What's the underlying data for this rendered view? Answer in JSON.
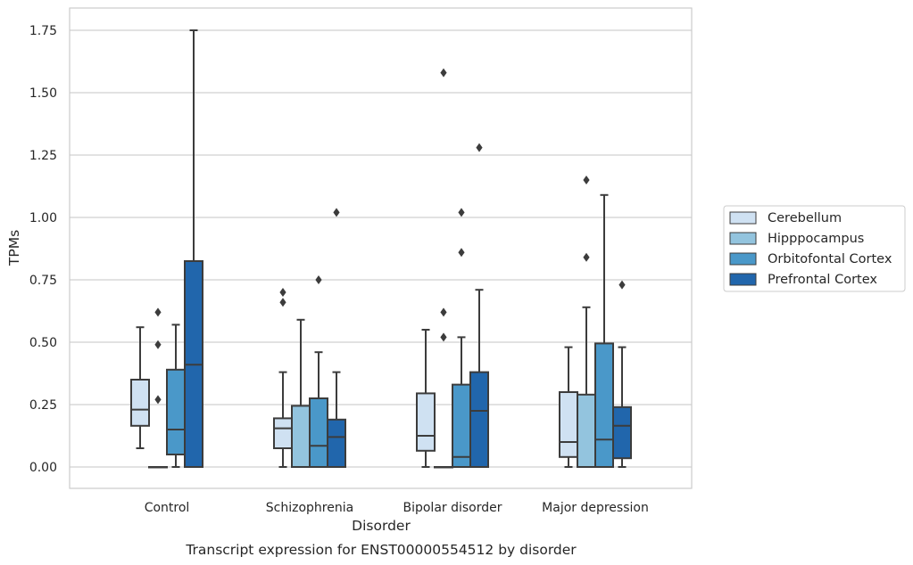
{
  "chart_data": {
    "type": "box",
    "title": "",
    "caption": "Transcript expression for ENST00000554512 by disorder",
    "xlabel": "Disorder",
    "ylabel": "TPMs",
    "ylim": [
      -0.08,
      1.84
    ],
    "yticks": [
      0.0,
      0.25,
      0.5,
      0.75,
      1.0,
      1.25,
      1.5,
      1.75
    ],
    "ytick_labels": [
      "0.00",
      "0.25",
      "0.50",
      "0.75",
      "1.00",
      "1.25",
      "1.50",
      "1.75"
    ],
    "grid": "horizontal",
    "legend_position": "right",
    "categories": [
      "Control",
      "Schizophrenia",
      "Bipolar disorder",
      "Major depression"
    ],
    "series": [
      {
        "name": "Cerebellum",
        "color": "#cfe1f2",
        "boxes": [
          {
            "whislo": 0.075,
            "q1": 0.165,
            "med": 0.23,
            "q3": 0.35,
            "whishi": 0.56,
            "fliers": []
          },
          {
            "whislo": 0.0,
            "q1": 0.075,
            "med": 0.155,
            "q3": 0.195,
            "whishi": 0.38,
            "fliers": [
              0.66,
              0.7
            ]
          },
          {
            "whislo": 0.0,
            "q1": 0.065,
            "med": 0.125,
            "q3": 0.295,
            "whishi": 0.55,
            "fliers": []
          },
          {
            "whislo": 0.0,
            "q1": 0.04,
            "med": 0.1,
            "q3": 0.3,
            "whishi": 0.48,
            "fliers": []
          }
        ]
      },
      {
        "name": "Hipppocampus",
        "color": "#93c4de",
        "boxes": [
          {
            "whislo": 0.0,
            "q1": 0.0,
            "med": 0.0,
            "q3": 0.0,
            "whishi": 0.0,
            "fliers": [
              0.27,
              0.49,
              0.62
            ]
          },
          {
            "whislo": 0.0,
            "q1": 0.0,
            "med": 0.0,
            "q3": 0.245,
            "whishi": 0.59,
            "fliers": []
          },
          {
            "whislo": 0.0,
            "q1": 0.0,
            "med": 0.0,
            "q3": 0.0,
            "whishi": 0.0,
            "fliers": [
              0.52,
              0.62,
              1.58
            ]
          },
          {
            "whislo": 0.0,
            "q1": 0.0,
            "med": 0.0,
            "q3": 0.29,
            "whishi": 0.64,
            "fliers": [
              0.84,
              1.15
            ]
          }
        ]
      },
      {
        "name": "Orbitofontal Cortex",
        "color": "#4a98c9",
        "boxes": [
          {
            "whislo": 0.0,
            "q1": 0.05,
            "med": 0.15,
            "q3": 0.39,
            "whishi": 0.57,
            "fliers": []
          },
          {
            "whislo": 0.0,
            "q1": 0.0,
            "med": 0.085,
            "q3": 0.275,
            "whishi": 0.46,
            "fliers": [
              0.75
            ]
          },
          {
            "whislo": 0.0,
            "q1": 0.0,
            "med": 0.04,
            "q3": 0.33,
            "whishi": 0.52,
            "fliers": [
              0.86,
              1.02
            ]
          },
          {
            "whislo": 0.0,
            "q1": 0.0,
            "med": 0.11,
            "q3": 0.495,
            "whishi": 1.09,
            "fliers": []
          }
        ]
      },
      {
        "name": "Prefrontal Cortex",
        "color": "#2166ac",
        "boxes": [
          {
            "whislo": 0.0,
            "q1": 0.0,
            "med": 0.41,
            "q3": 0.825,
            "whishi": 1.75,
            "fliers": []
          },
          {
            "whislo": 0.0,
            "q1": 0.0,
            "med": 0.12,
            "q3": 0.19,
            "whishi": 0.38,
            "fliers": [
              1.02
            ]
          },
          {
            "whislo": 0.0,
            "q1": 0.0,
            "med": 0.225,
            "q3": 0.38,
            "whishi": 0.71,
            "fliers": [
              1.28
            ]
          },
          {
            "whislo": 0.0,
            "q1": 0.035,
            "med": 0.165,
            "q3": 0.24,
            "whishi": 0.48,
            "fliers": [
              0.73
            ]
          }
        ]
      }
    ]
  }
}
